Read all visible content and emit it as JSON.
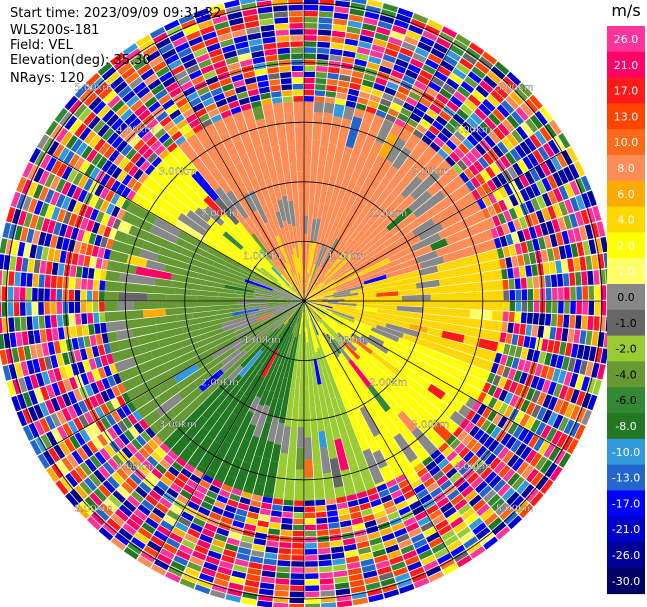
{
  "header": {
    "start_time": "Start time: 2023/09/09 09:31:32",
    "site": "WLS200s-181",
    "field": "Field: VEL",
    "elevation": "Elevation(deg): 35.30",
    "nrays": "NRays: 120"
  },
  "chart_data": {
    "type": "heatmap",
    "subtype": "polar PPI scan",
    "field": "VEL",
    "unit": "m/s",
    "range_rings_km": [
      1,
      2,
      3,
      4,
      5
    ],
    "ring_labels": [
      "1.00km",
      "2.00km",
      "3.00km",
      "4.00km",
      "5.00km"
    ],
    "spokes_deg": [
      0,
      30,
      60,
      90,
      120,
      150,
      180,
      210,
      240,
      270,
      300,
      330
    ],
    "max_range_km": 5.0,
    "noise_beyond_km": 3.35,
    "rays": 120,
    "colorbar": {
      "title": "m/s",
      "ticks": [
        "26.0",
        "21.0",
        "17.0",
        "13.0",
        "10.0",
        "8.0",
        "6.0",
        "4.0",
        "2.0",
        "1.0",
        "0.0",
        "-1.0",
        "-2.0",
        "-4.0",
        "-6.0",
        "-8.0",
        "-10.0",
        "-13.0",
        "-17.0",
        "-21.0",
        "-26.0",
        "-30.0"
      ],
      "colors": [
        "#ff3399",
        "#ff0066",
        "#ff1a1a",
        "#ff4400",
        "#ff6a1a",
        "#ff8c55",
        "#ffaa00",
        "#ffd700",
        "#ffff00",
        "#ffff66",
        "#888888",
        "#666666",
        "#99cc33",
        "#669933",
        "#338833",
        "#227722",
        "#3399dd",
        "#2266cc",
        "#0000ff",
        "#0000cc",
        "#000099",
        "#000066"
      ]
    },
    "sectors": [
      {
        "from_deg": 320,
        "to_deg": 360,
        "value": 8.0
      },
      {
        "from_deg": 0,
        "to_deg": 75,
        "value": 8.0
      },
      {
        "from_deg": 75,
        "to_deg": 110,
        "value": 4.0
      },
      {
        "from_deg": 110,
        "to_deg": 160,
        "value": 2.0
      },
      {
        "from_deg": 160,
        "to_deg": 190,
        "value": -2.0
      },
      {
        "from_deg": 190,
        "to_deg": 225,
        "value": -8.0
      },
      {
        "from_deg": 225,
        "to_deg": 265,
        "value": -4.0
      },
      {
        "from_deg": 265,
        "to_deg": 300,
        "value": -4.0
      },
      {
        "from_deg": 300,
        "to_deg": 320,
        "value": 2.0
      }
    ]
  }
}
